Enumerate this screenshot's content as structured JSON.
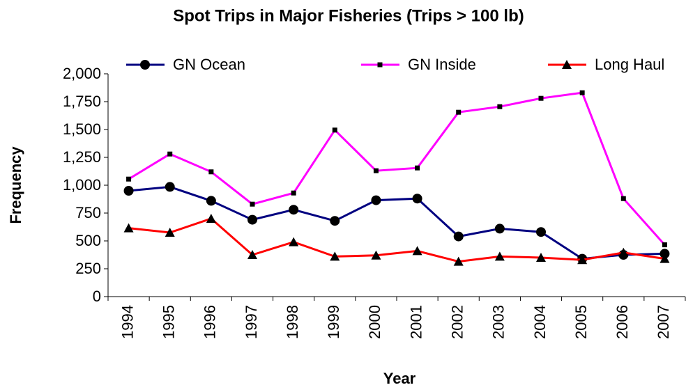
{
  "chart_data": {
    "type": "line",
    "title": "Spot Trips in Major Fisheries (Trips > 100 lb)",
    "x_label": "Year",
    "y_label": "Frequency",
    "categories": [
      "1994",
      "1995",
      "1996",
      "1997",
      "1998",
      "1999",
      "2000",
      "2001",
      "2002",
      "2003",
      "2004",
      "2005",
      "2006",
      "2007"
    ],
    "series": [
      {
        "name": "GN Ocean",
        "color": "#000080",
        "marker": "circle",
        "values": [
          950,
          985,
          860,
          690,
          780,
          680,
          865,
          880,
          540,
          610,
          580,
          340,
          375,
          385
        ]
      },
      {
        "name": "GN Inside",
        "color": "#ff00ff",
        "marker": "square",
        "values": [
          1055,
          1280,
          1120,
          830,
          930,
          1495,
          1130,
          1155,
          1655,
          1705,
          1780,
          1830,
          880,
          465
        ]
      },
      {
        "name": "Long Haul",
        "color": "#ff0000",
        "marker": "triangle",
        "values": [
          615,
          575,
          700,
          375,
          490,
          360,
          370,
          410,
          315,
          360,
          350,
          330,
          395,
          340
        ]
      }
    ],
    "ylim": [
      0,
      2000
    ],
    "yticks": [
      0,
      250,
      500,
      750,
      {
        "value": 1000,
        "label": "1,000"
      },
      {
        "value": 1250,
        "label": "1,250"
      },
      {
        "value": 1500,
        "label": "1,500"
      },
      {
        "value": 1750,
        "label": "1,750"
      },
      {
        "value": 2000,
        "label": "2,000"
      }
    ],
    "grid": false,
    "legend": "top"
  }
}
